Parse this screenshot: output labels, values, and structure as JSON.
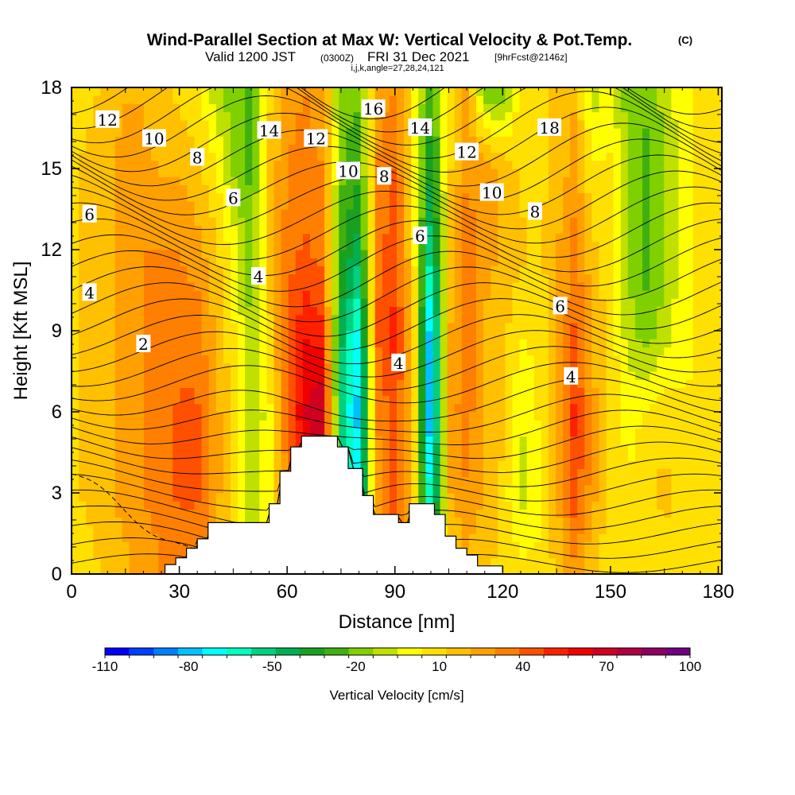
{
  "header": {
    "title": "Wind-Parallel Section at Max W: Vertical Velocity & Pot.Temp.",
    "title_mark": "(C)",
    "valid_prefix": "Valid 1200 JST",
    "valid_utc": "(0300Z)",
    "valid_date": "FRI 31 Dec 2021",
    "forecast_note": "[9hrFcst@2146z]",
    "indices": "i,j,k,angle=27,28,24,121"
  },
  "chart_data": {
    "type": "heatmap",
    "xlabel": "Distance [nm]",
    "ylabel": "Height [Kft MSL]",
    "xlim": [
      0,
      181
    ],
    "ylim": [
      0,
      18
    ],
    "x_ticks": [
      0,
      30,
      60,
      90,
      120,
      150,
      180
    ],
    "y_ticks": [
      0,
      3,
      6,
      9,
      12,
      15,
      18
    ],
    "colorbar": {
      "label": "Vertical Velocity [cm/s]",
      "tick_labels": [
        -110,
        -80,
        -50,
        -20,
        10,
        40,
        70,
        100
      ],
      "min": -110,
      "max": 100,
      "colors": [
        "#0000ff",
        "#0040ff",
        "#0080ff",
        "#00c0ff",
        "#00ffff",
        "#00ffc0",
        "#00d080",
        "#00b050",
        "#18a020",
        "#40b010",
        "#80d000",
        "#c0e000",
        "#ffff00",
        "#ffe000",
        "#ffc000",
        "#ffa000",
        "#ff8000",
        "#ff5000",
        "#ff2000",
        "#f00000",
        "#d00020",
        "#b00040",
        "#900060",
        "#700080"
      ]
    },
    "w_field": {
      "x": [
        0,
        5,
        10,
        15,
        20,
        25,
        30,
        35,
        40,
        45,
        50,
        55,
        60,
        65,
        70,
        75,
        80,
        85,
        90,
        95,
        100,
        105,
        110,
        115,
        120,
        125,
        130,
        135,
        140,
        145,
        150,
        155,
        160,
        165,
        170,
        175,
        180
      ],
      "heights": [
        0.5,
        3,
        6,
        9,
        12,
        15,
        18
      ],
      "values": [
        [
          10,
          10,
          15,
          20,
          25,
          30,
          35,
          35,
          20,
          5,
          -5,
          0,
          20,
          40,
          45,
          -20,
          -50,
          20,
          40,
          10,
          -40,
          10,
          20,
          15,
          10,
          5,
          5,
          15,
          30,
          15,
          5,
          5,
          5,
          10,
          10,
          5,
          5
        ],
        [
          10,
          15,
          20,
          25,
          30,
          35,
          40,
          40,
          25,
          10,
          -10,
          0,
          30,
          55,
          60,
          -40,
          -70,
          25,
          45,
          15,
          -70,
          20,
          30,
          20,
          10,
          -10,
          0,
          20,
          45,
          25,
          10,
          5,
          10,
          15,
          10,
          5,
          5
        ],
        [
          10,
          15,
          20,
          25,
          30,
          35,
          40,
          40,
          25,
          10,
          -15,
          0,
          40,
          65,
          75,
          -55,
          -80,
          30,
          45,
          20,
          -90,
          25,
          35,
          20,
          15,
          -5,
          5,
          25,
          50,
          25,
          10,
          0,
          5,
          10,
          5,
          5,
          5
        ],
        [
          10,
          15,
          20,
          25,
          30,
          30,
          35,
          35,
          20,
          5,
          -15,
          10,
          40,
          55,
          50,
          -45,
          -70,
          40,
          50,
          20,
          -85,
          20,
          35,
          20,
          15,
          5,
          5,
          20,
          40,
          20,
          10,
          -10,
          -20,
          -10,
          0,
          5,
          5
        ],
        [
          10,
          15,
          20,
          25,
          30,
          30,
          30,
          25,
          15,
          0,
          -20,
          15,
          35,
          40,
          35,
          -30,
          -45,
          35,
          45,
          10,
          -60,
          15,
          35,
          25,
          20,
          15,
          10,
          20,
          35,
          15,
          5,
          -15,
          -25,
          -15,
          0,
          5,
          5
        ],
        [
          10,
          15,
          20,
          25,
          25,
          20,
          20,
          15,
          5,
          -15,
          -25,
          15,
          30,
          35,
          30,
          -20,
          -30,
          30,
          40,
          5,
          -40,
          10,
          30,
          25,
          20,
          10,
          10,
          15,
          25,
          5,
          5,
          -15,
          -25,
          -15,
          0,
          5,
          5
        ],
        [
          10,
          10,
          15,
          20,
          20,
          15,
          10,
          5,
          -10,
          -20,
          -25,
          10,
          25,
          30,
          25,
          -20,
          -20,
          25,
          30,
          5,
          -30,
          5,
          25,
          -20,
          -25,
          10,
          10,
          15,
          20,
          -10,
          0,
          -20,
          -20,
          -10,
          0,
          5,
          5
        ]
      ]
    },
    "theta_contours": [
      {
        "label": "2",
        "at": [
          20,
          8.5
        ]
      },
      {
        "label": "4",
        "at": [
          5,
          10.4
        ]
      },
      {
        "label": "4",
        "at": [
          52,
          11.0
        ]
      },
      {
        "label": "4",
        "at": [
          91,
          7.8
        ]
      },
      {
        "label": "4",
        "at": [
          139,
          7.3
        ]
      },
      {
        "label": "6",
        "at": [
          5,
          13.3
        ]
      },
      {
        "label": "6",
        "at": [
          45,
          13.9
        ]
      },
      {
        "label": "6",
        "at": [
          97,
          12.5
        ]
      },
      {
        "label": "6",
        "at": [
          136,
          9.9
        ]
      },
      {
        "label": "8",
        "at": [
          35,
          15.4
        ]
      },
      {
        "label": "8",
        "at": [
          87,
          14.7
        ]
      },
      {
        "label": "8",
        "at": [
          129,
          13.4
        ]
      },
      {
        "label": "10",
        "at": [
          23,
          16.1
        ]
      },
      {
        "label": "10",
        "at": [
          77,
          14.9
        ]
      },
      {
        "label": "10",
        "at": [
          117,
          14.1
        ]
      },
      {
        "label": "12",
        "at": [
          10,
          16.8
        ]
      },
      {
        "label": "12",
        "at": [
          68,
          16.1
        ]
      },
      {
        "label": "12",
        "at": [
          110,
          15.6
        ]
      },
      {
        "label": "14",
        "at": [
          55,
          16.4
        ]
      },
      {
        "label": "14",
        "at": [
          97,
          16.5
        ]
      },
      {
        "label": "16",
        "at": [
          84,
          17.2
        ]
      },
      {
        "label": "18",
        "at": [
          133,
          16.5
        ]
      }
    ],
    "terrain": [
      [
        0,
        0
      ],
      [
        26,
        0
      ],
      [
        26,
        0.35
      ],
      [
        29,
        0.35
      ],
      [
        29,
        0.6
      ],
      [
        32,
        0.6
      ],
      [
        32,
        0.95
      ],
      [
        35,
        0.95
      ],
      [
        35,
        1.3
      ],
      [
        38,
        1.3
      ],
      [
        38,
        1.9
      ],
      [
        55,
        1.9
      ],
      [
        55,
        2.6
      ],
      [
        58,
        2.6
      ],
      [
        58,
        3.8
      ],
      [
        61,
        3.8
      ],
      [
        61,
        4.7
      ],
      [
        64,
        4.7
      ],
      [
        64,
        5.1
      ],
      [
        74,
        5.1
      ],
      [
        74,
        4.7
      ],
      [
        77,
        4.7
      ],
      [
        77,
        3.9
      ],
      [
        81,
        3.9
      ],
      [
        81,
        2.9
      ],
      [
        84,
        2.9
      ],
      [
        84,
        2.2
      ],
      [
        87,
        2.2
      ],
      [
        87,
        2.2
      ],
      [
        91,
        2.2
      ],
      [
        91,
        1.9
      ],
      [
        94,
        1.9
      ],
      [
        94,
        2.6
      ],
      [
        97,
        2.6
      ],
      [
        97,
        2.6
      ],
      [
        101,
        2.6
      ],
      [
        101,
        2.2
      ],
      [
        104,
        2.2
      ],
      [
        104,
        1.4
      ],
      [
        107,
        1.4
      ],
      [
        107,
        0.95
      ],
      [
        110,
        0.95
      ],
      [
        110,
        0.7
      ],
      [
        113,
        0.7
      ],
      [
        113,
        0.3
      ],
      [
        120,
        0.3
      ],
      [
        120,
        0
      ]
    ]
  }
}
